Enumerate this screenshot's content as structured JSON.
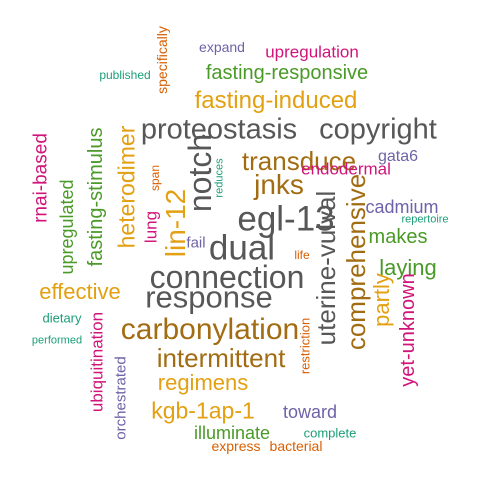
{
  "palette": {
    "green": "#4a9a28",
    "orange": "#e3a012",
    "gray": "#575757",
    "brown": "#a26c12",
    "purple": "#6d63a8",
    "magenta": "#d1147a",
    "teal": "#1b9e77",
    "rust": "#d95f02"
  },
  "words": [
    {
      "text": "expand",
      "color": "purple",
      "size": 14,
      "vertical": false
    },
    {
      "text": "upregulation",
      "color": "magenta",
      "size": 17,
      "vertical": false
    },
    {
      "text": "specifically",
      "color": "rust",
      "size": 14,
      "vertical": true
    },
    {
      "text": "published",
      "color": "teal",
      "size": 12,
      "vertical": false
    },
    {
      "text": "fasting-responsive",
      "color": "green",
      "size": 20,
      "vertical": false
    },
    {
      "text": "fasting-induced",
      "color": "orange",
      "size": 24,
      "vertical": false
    },
    {
      "text": "proteostasis",
      "color": "gray",
      "size": 29,
      "vertical": false
    },
    {
      "text": "copyright",
      "color": "gray",
      "size": 29,
      "vertical": false
    },
    {
      "text": "rnai-based",
      "color": "magenta",
      "size": 19,
      "vertical": true
    },
    {
      "text": "fasting-stimulus",
      "color": "green",
      "size": 20,
      "vertical": true
    },
    {
      "text": "heterodimer",
      "color": "orange",
      "size": 23,
      "vertical": true
    },
    {
      "text": "span",
      "color": "rust",
      "size": 12,
      "vertical": true
    },
    {
      "text": "notch",
      "color": "gray",
      "size": 32,
      "vertical": true
    },
    {
      "text": "transduce",
      "color": "brown",
      "size": 26,
      "vertical": false
    },
    {
      "text": "gata6",
      "color": "purple",
      "size": 16,
      "vertical": false
    },
    {
      "text": "jnks",
      "color": "brown",
      "size": 28,
      "vertical": false
    },
    {
      "text": "endodermal",
      "color": "magenta",
      "size": 17,
      "vertical": false
    },
    {
      "text": "reduces",
      "color": "teal",
      "size": 11,
      "vertical": true
    },
    {
      "text": "cadmium",
      "color": "purple",
      "size": 18,
      "vertical": false
    },
    {
      "text": "repertoire",
      "color": "teal",
      "size": 11,
      "vertical": false
    },
    {
      "text": "upregulated",
      "color": "green",
      "size": 18,
      "vertical": true
    },
    {
      "text": "lin-12",
      "color": "orange",
      "size": 28,
      "vertical": true
    },
    {
      "text": "lung",
      "color": "magenta",
      "size": 17,
      "vertical": true
    },
    {
      "text": "egl-13",
      "color": "gray",
      "size": 35,
      "vertical": false
    },
    {
      "text": "comprehensive",
      "color": "brown",
      "size": 26,
      "vertical": true
    },
    {
      "text": "uterine-vulval",
      "color": "gray",
      "size": 26,
      "vertical": true
    },
    {
      "text": "makes",
      "color": "green",
      "size": 20,
      "vertical": false
    },
    {
      "text": "fail",
      "color": "purple",
      "size": 15,
      "vertical": false
    },
    {
      "text": "dual",
      "color": "gray",
      "size": 35,
      "vertical": false
    },
    {
      "text": "life",
      "color": "rust",
      "size": 12,
      "vertical": false
    },
    {
      "text": "laying",
      "color": "green",
      "size": 22,
      "vertical": false
    },
    {
      "text": "connection",
      "color": "gray",
      "size": 32,
      "vertical": false
    },
    {
      "text": "effective",
      "color": "orange",
      "size": 22,
      "vertical": false
    },
    {
      "text": "response",
      "color": "gray",
      "size": 31,
      "vertical": false
    },
    {
      "text": "partly",
      "color": "orange",
      "size": 22,
      "vertical": true
    },
    {
      "text": "yet-unknown",
      "color": "magenta",
      "size": 20,
      "vertical": true
    },
    {
      "text": "dietary",
      "color": "teal",
      "size": 13,
      "vertical": false
    },
    {
      "text": "carbonylation",
      "color": "brown",
      "size": 30,
      "vertical": false
    },
    {
      "text": "performed",
      "color": "teal",
      "size": 11,
      "vertical": false
    },
    {
      "text": "ubiquitination",
      "color": "magenta",
      "size": 17,
      "vertical": true
    },
    {
      "text": "restriction",
      "color": "rust",
      "size": 13,
      "vertical": true
    },
    {
      "text": "intermittent",
      "color": "brown",
      "size": 26,
      "vertical": false
    },
    {
      "text": "orchestrated",
      "color": "purple",
      "size": 15,
      "vertical": true
    },
    {
      "text": "regimens",
      "color": "orange",
      "size": 22,
      "vertical": false
    },
    {
      "text": "kgb-1ap-1",
      "color": "orange",
      "size": 23,
      "vertical": false
    },
    {
      "text": "toward",
      "color": "purple",
      "size": 18,
      "vertical": false
    },
    {
      "text": "illuminate",
      "color": "green",
      "size": 18,
      "vertical": false
    },
    {
      "text": "complete",
      "color": "teal",
      "size": 13,
      "vertical": false
    },
    {
      "text": "express",
      "color": "rust",
      "size": 14,
      "vertical": false
    },
    {
      "text": "bacterial",
      "color": "rust",
      "size": 14,
      "vertical": false
    }
  ]
}
